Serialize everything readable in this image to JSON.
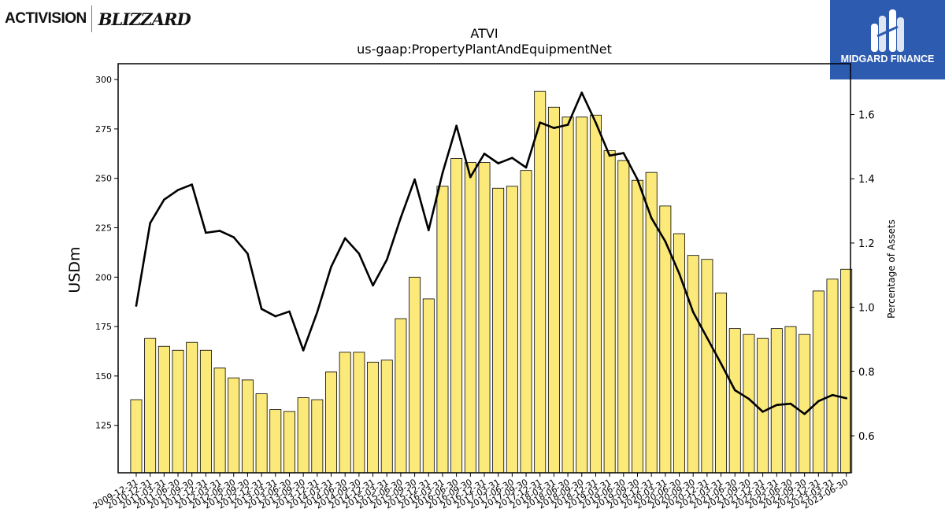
{
  "logos": {
    "left_activision": "ACTIVISION",
    "left_blizzard": "BLIZZARD",
    "right_brand": "MIDGARD FINANCE"
  },
  "chart_data": {
    "type": "bar",
    "title": "ATVI",
    "subtitle": "us-gaap:PropertyPlantAndEquipmentNet",
    "ylabel": "USDm",
    "y2label": "Percentage of Assets",
    "ylim": [
      101,
      308
    ],
    "y2lim": [
      0.485,
      1.758
    ],
    "yticks": [
      125,
      150,
      175,
      200,
      225,
      250,
      275,
      300
    ],
    "y2ticks": [
      0.6,
      0.8,
      1.0,
      1.2,
      1.4,
      1.6
    ],
    "bar_color": "#fbe97a",
    "line_color": "#000000",
    "categories": [
      "2009-12-31",
      "2010-12-31",
      "2011-03-31",
      "2011-06-30",
      "2011-09-30",
      "2011-12-31",
      "2012-03-31",
      "2012-06-30",
      "2012-09-30",
      "2012-12-31",
      "2013-03-31",
      "2013-06-30",
      "2013-09-30",
      "2013-12-31",
      "2014-03-31",
      "2014-06-30",
      "2014-09-30",
      "2014-12-31",
      "2015-03-31",
      "2015-06-30",
      "2015-09-30",
      "2015-12-31",
      "2016-03-31",
      "2016-06-30",
      "2016-09-30",
      "2016-12-31",
      "2017-03-31",
      "2017-06-30",
      "2017-09-30",
      "2017-12-31",
      "2018-03-31",
      "2018-06-30",
      "2018-09-30",
      "2018-12-31",
      "2019-03-31",
      "2019-06-30",
      "2019-09-30",
      "2019-12-31",
      "2020-03-31",
      "2020-06-30",
      "2020-09-30",
      "2020-12-31",
      "2021-03-31",
      "2021-06-30",
      "2021-09-30",
      "2021-12-31",
      "2022-03-31",
      "2022-06-30",
      "2022-09-30",
      "2022-12-31",
      "2023-03-31",
      "2023-06-30"
    ],
    "xtick_labels": [
      "2009-12-31",
      "2010-12-31",
      "2011-03-31",
      "2011-06-30",
      "2011-09-30",
      "2011-12-31",
      "2012-03-31",
      "2012-06-30",
      "2012-09-30",
      "2012-12-31",
      "2013-03-31",
      "2013-06-30",
      "2013-09-30",
      "2013-12-31",
      "2014-03-31",
      "2014-06-30",
      "2014-09-30",
      "2014-12-31",
      "2015-03-31",
      "2015-06-30",
      "2015-09-30",
      "2015-12-31",
      "2016-03-31",
      "2016-06-30",
      "2016-09-30",
      "2016-12-31",
      "2017-03-31",
      "2017-06-30",
      "2017-09-30",
      "2017-12-31",
      "2018-03-31",
      "2018-06-30",
      "2018-09-30",
      "2018-12-31",
      "2019-03-31",
      "2019-06-30",
      "2019-09-30",
      "2019-12-31",
      "2020-03-31",
      "2020-06-30",
      "2020-09-30",
      "2020-12-31",
      "2021-03-31",
      "2021-06-30",
      "2021-09-30",
      "2021-12-31",
      "2022-03-31",
      "2022-06-30",
      "2022-09-30",
      "2022-12-31",
      "2023-03-31",
      "2023-06-30"
    ],
    "series": [
      {
        "type": "bar",
        "axis": "left",
        "values": [
          138,
          169,
          165,
          163,
          167,
          163,
          154,
          149,
          148,
          141,
          133,
          132,
          139,
          138,
          152,
          162,
          162,
          157,
          158,
          179,
          200,
          189,
          246,
          260,
          258,
          258,
          245,
          246,
          254,
          294,
          286,
          281,
          281,
          282,
          264,
          259,
          249,
          253,
          236,
          222,
          211,
          209,
          192,
          174,
          171,
          169,
          174,
          175,
          171,
          193,
          199,
          204
        ]
      },
      {
        "type": "line",
        "axis": "right",
        "values": [
          1.005,
          1.262,
          1.335,
          1.365,
          1.382,
          1.232,
          1.238,
          1.218,
          1.167,
          0.995,
          0.972,
          0.987,
          0.866,
          0.985,
          1.126,
          1.215,
          1.167,
          1.068,
          1.148,
          1.279,
          1.398,
          1.24,
          1.418,
          1.565,
          1.405,
          1.478,
          1.448,
          1.465,
          1.435,
          1.575,
          1.558,
          1.568,
          1.668,
          1.575,
          1.472,
          1.48,
          1.398,
          1.278,
          1.205,
          1.105,
          0.985,
          0.905,
          0.825,
          0.742,
          0.715,
          0.675,
          0.696,
          0.7,
          0.668,
          0.708,
          0.727,
          0.717
        ]
      }
    ],
    "grid": false,
    "legend": "none"
  }
}
